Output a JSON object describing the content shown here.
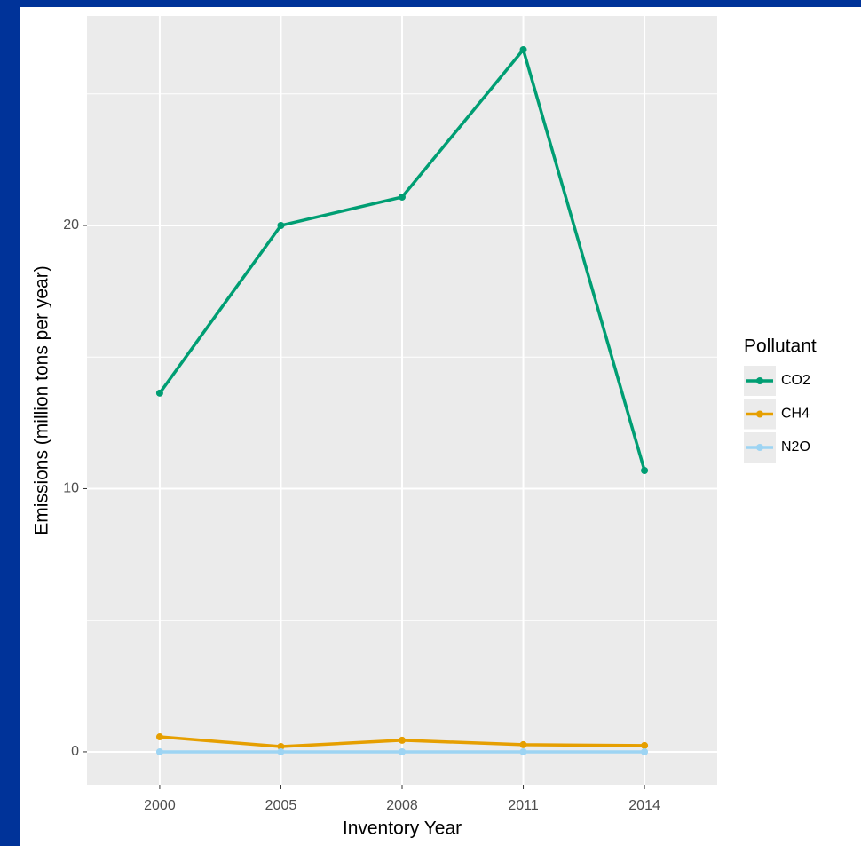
{
  "chart_data": {
    "type": "line",
    "x_label": "Inventory Year",
    "y_label": "Emissions (million tons per year)",
    "categories": [
      "2000",
      "2005",
      "2008",
      "2011",
      "2014"
    ],
    "series": [
      {
        "name": "CO2",
        "color": "#009e73",
        "values": [
          13.63,
          20.0,
          21.08,
          26.68,
          10.69
        ]
      },
      {
        "name": "CH4",
        "color": "#e69f00",
        "values": [
          0.57,
          0.2,
          0.44,
          0.27,
          0.24
        ]
      },
      {
        "name": "N2O",
        "color": "#9dd4f3",
        "values": [
          0,
          0,
          0,
          0,
          0
        ]
      }
    ],
    "ylim": [
      -1.25,
      27.96
    ],
    "yticks": [
      0,
      10,
      20
    ],
    "minor_yticks": [
      5,
      15,
      25
    ],
    "grid": true,
    "legend_title": "Pollutant",
    "legend_position": "right"
  }
}
